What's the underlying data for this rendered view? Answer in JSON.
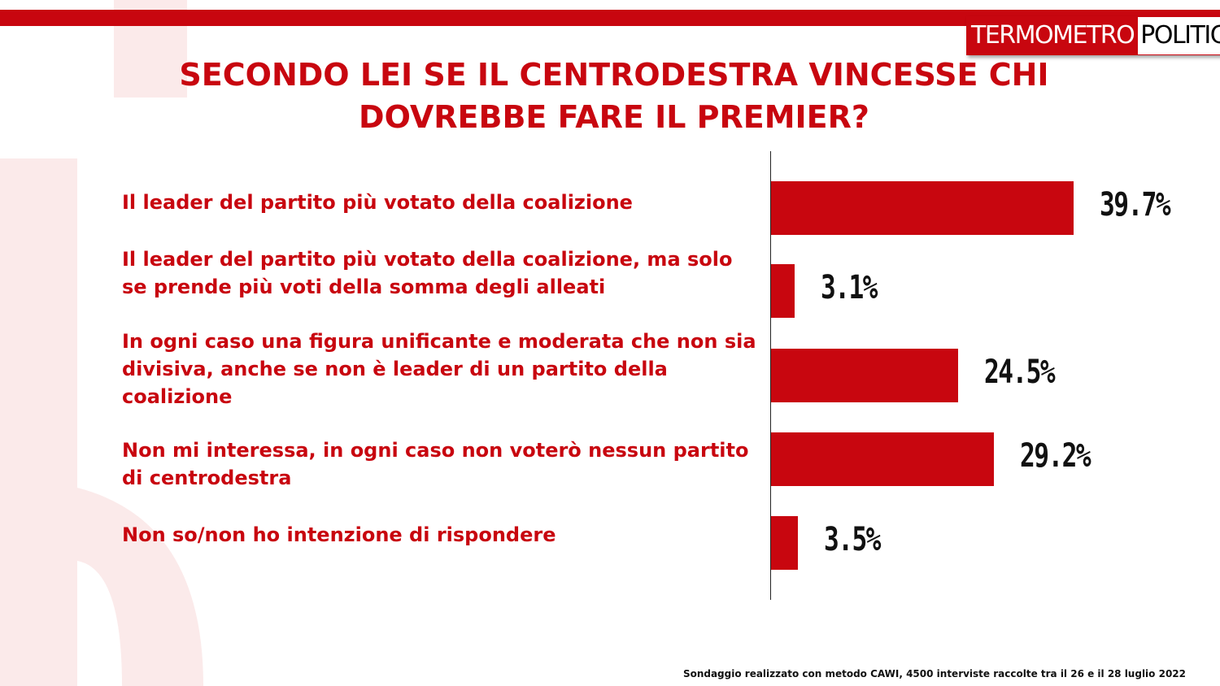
{
  "logo": {
    "part1": "TERMOMETRO",
    "part2": "POLITICO"
  },
  "title": "SECONDO LEI SE IL CENTRODESTRA VINCESSE CHI DOVREBBE FARE IL PREMIER?",
  "footnote": "Sondaggio realizzato con metodo CAWI, 4500 interviste raccolte tra il 26 e il 28 luglio 2022",
  "colors": {
    "accent": "#c8060f",
    "text_dark": "#111111"
  },
  "chart_data": {
    "type": "bar",
    "orientation": "horizontal",
    "title": "SECONDO LEI SE IL CENTRODESTRA VINCESSE CHI DOVREBBE FARE IL PREMIER?",
    "categories": [
      "Il leader del partito più votato della coalizione",
      "Il leader del partito più votato della coalizione, ma solo se prende più voti della somma degli alleati",
      "In ogni caso una figura unificante e moderata che non sia divisiva, anche se non è leader di un partito della coalizione",
      "Non mi interessa, in ogni caso non voterò nessun partito di centrodestra",
      "Non so/non ho intenzione di rispondere"
    ],
    "values": [
      39.7,
      3.1,
      24.5,
      29.2,
      3.5
    ],
    "value_labels": [
      "39.7%",
      "3.1%",
      "24.5%",
      "29.2%",
      "3.5%"
    ],
    "unit": "%",
    "grid": false,
    "legend": "none"
  }
}
